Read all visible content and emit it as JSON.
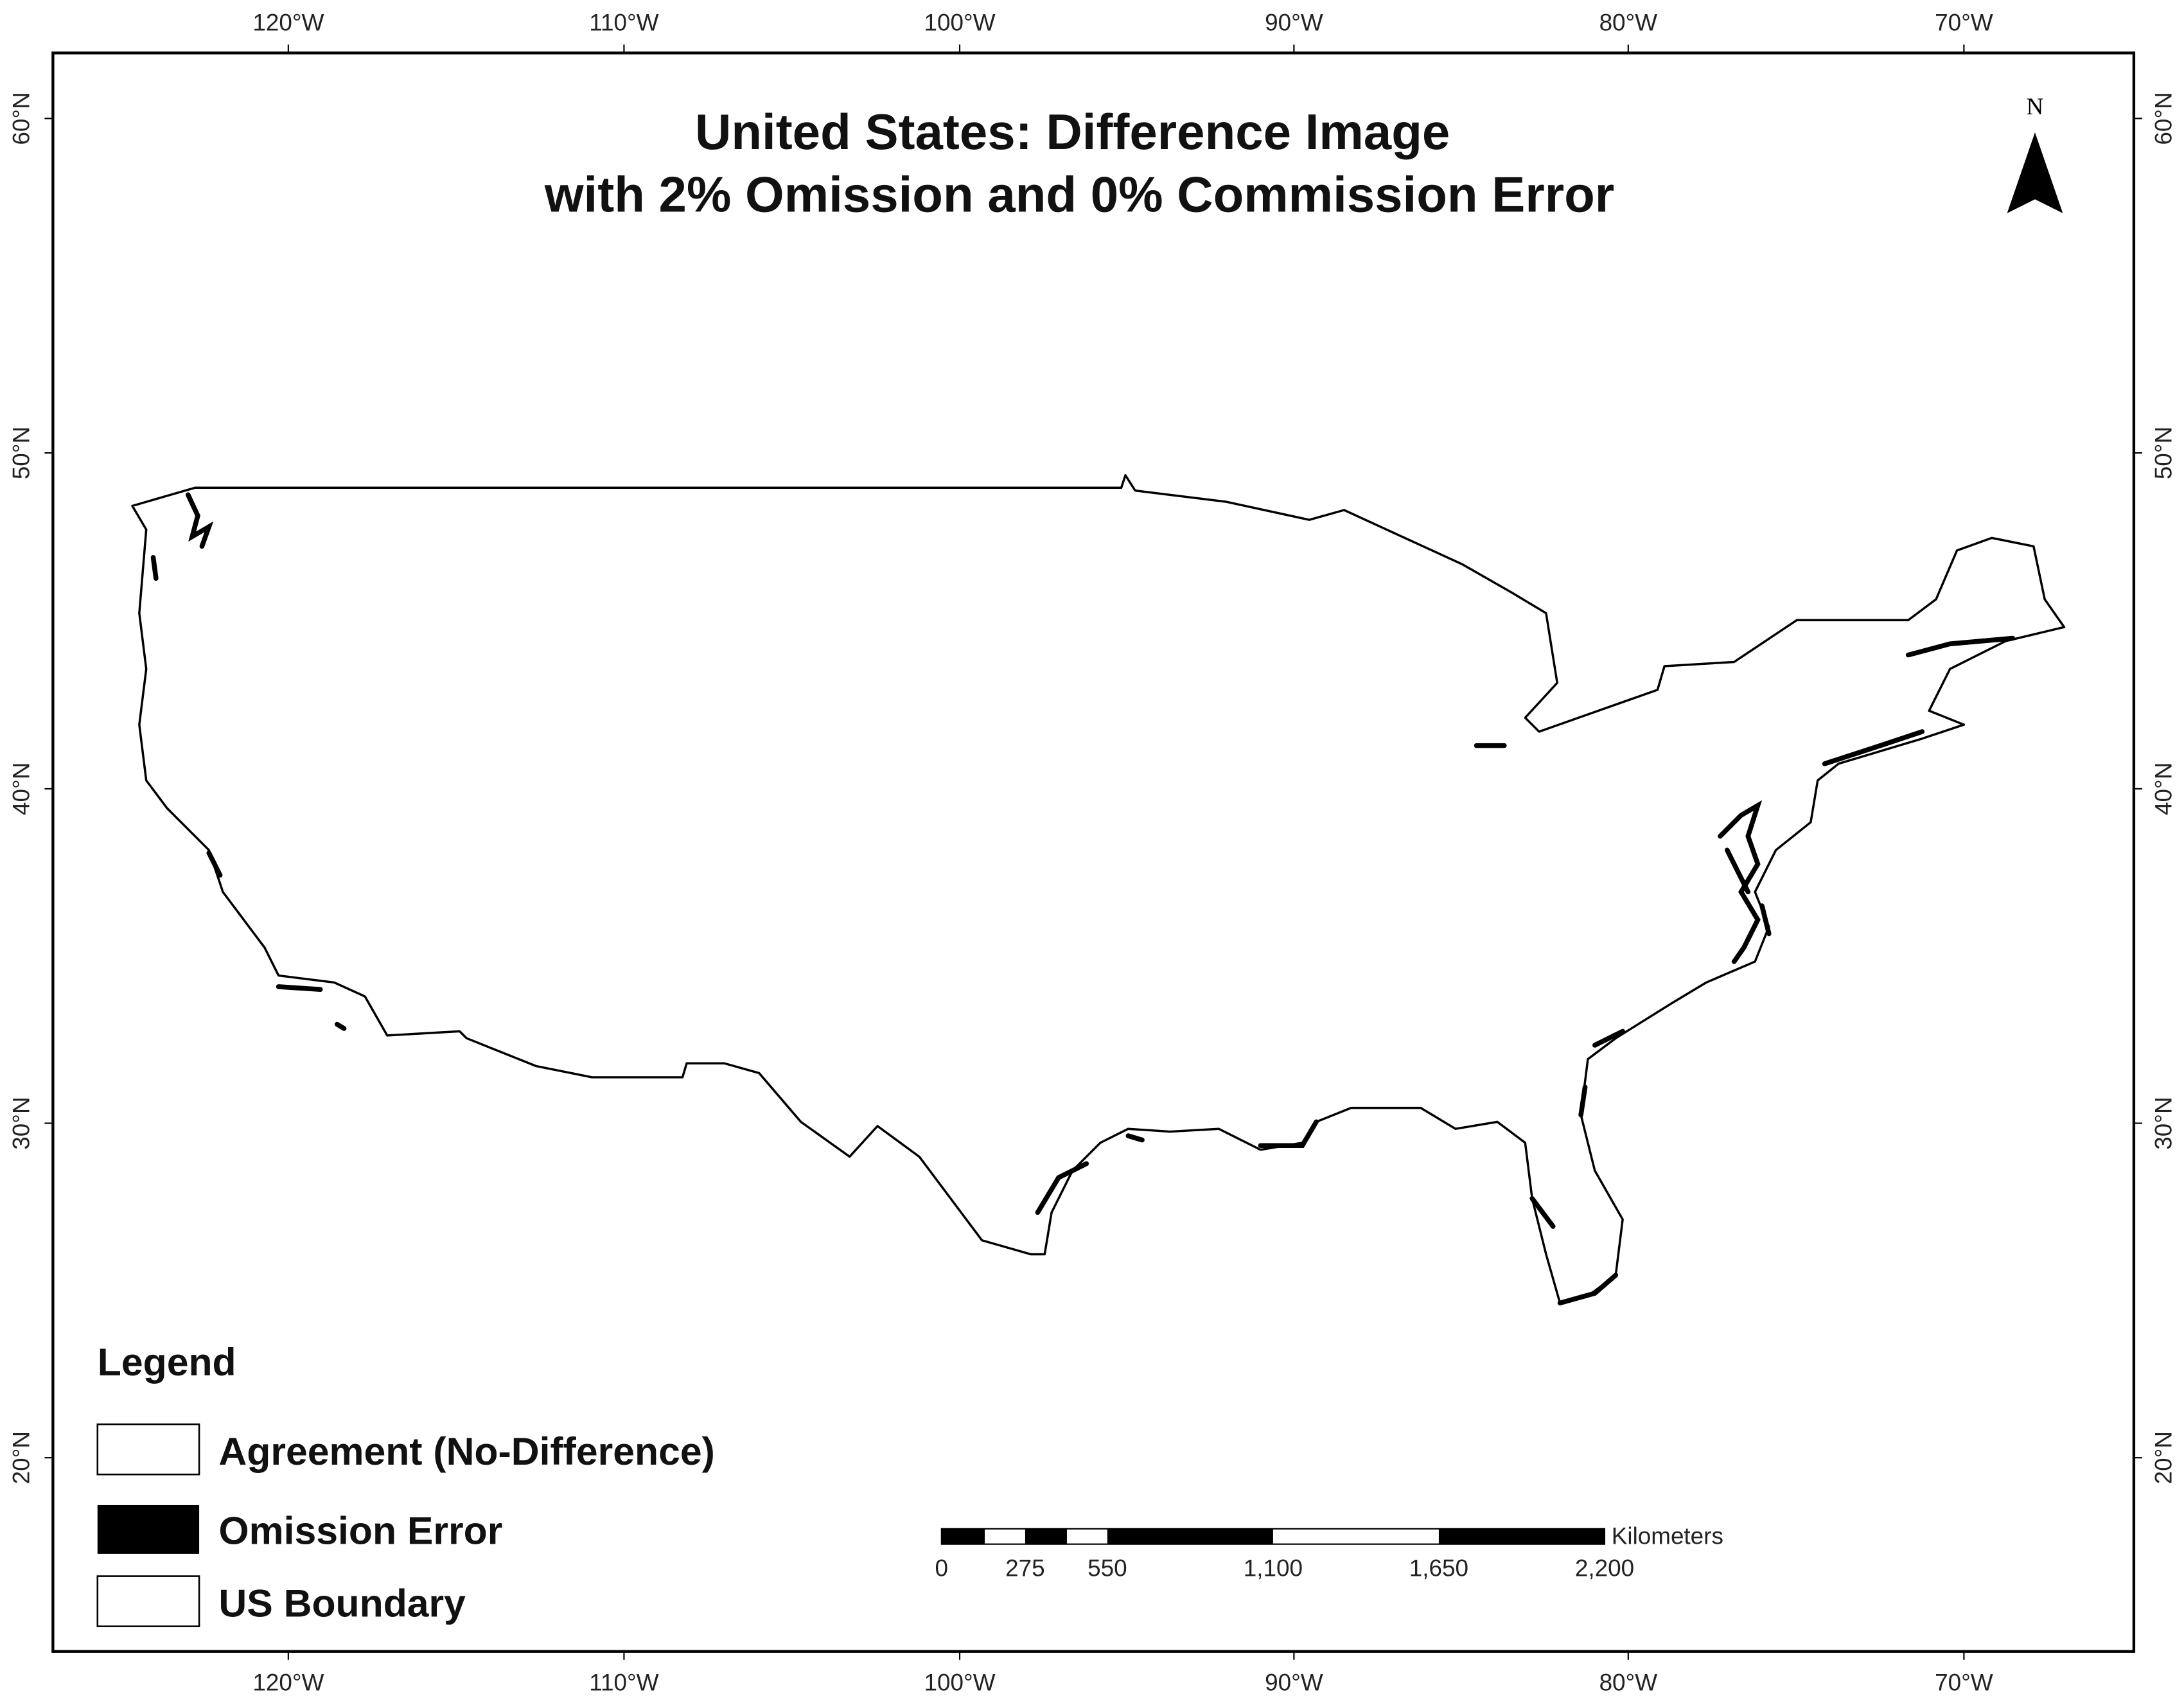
{
  "title": [
    "United States: Difference Image",
    "with 2% Omission and 0% Commission Error"
  ],
  "north_arrow": "N",
  "longitude_labels": [
    "120°W",
    "110°W",
    "100°W",
    "90°W",
    "80°W",
    "70°W"
  ],
  "latitude_labels": [
    "60°N",
    "50°N",
    "40°N",
    "30°N",
    "20°N"
  ],
  "legend": {
    "title": "Legend",
    "items": [
      "Agreement (No-Difference)",
      "Omission Error",
      "US Boundary"
    ]
  },
  "scale_bar": {
    "unit": "Kilometers",
    "labels": [
      "0",
      "275",
      "550",
      "1,100",
      "1,650",
      "2,200"
    ]
  }
}
